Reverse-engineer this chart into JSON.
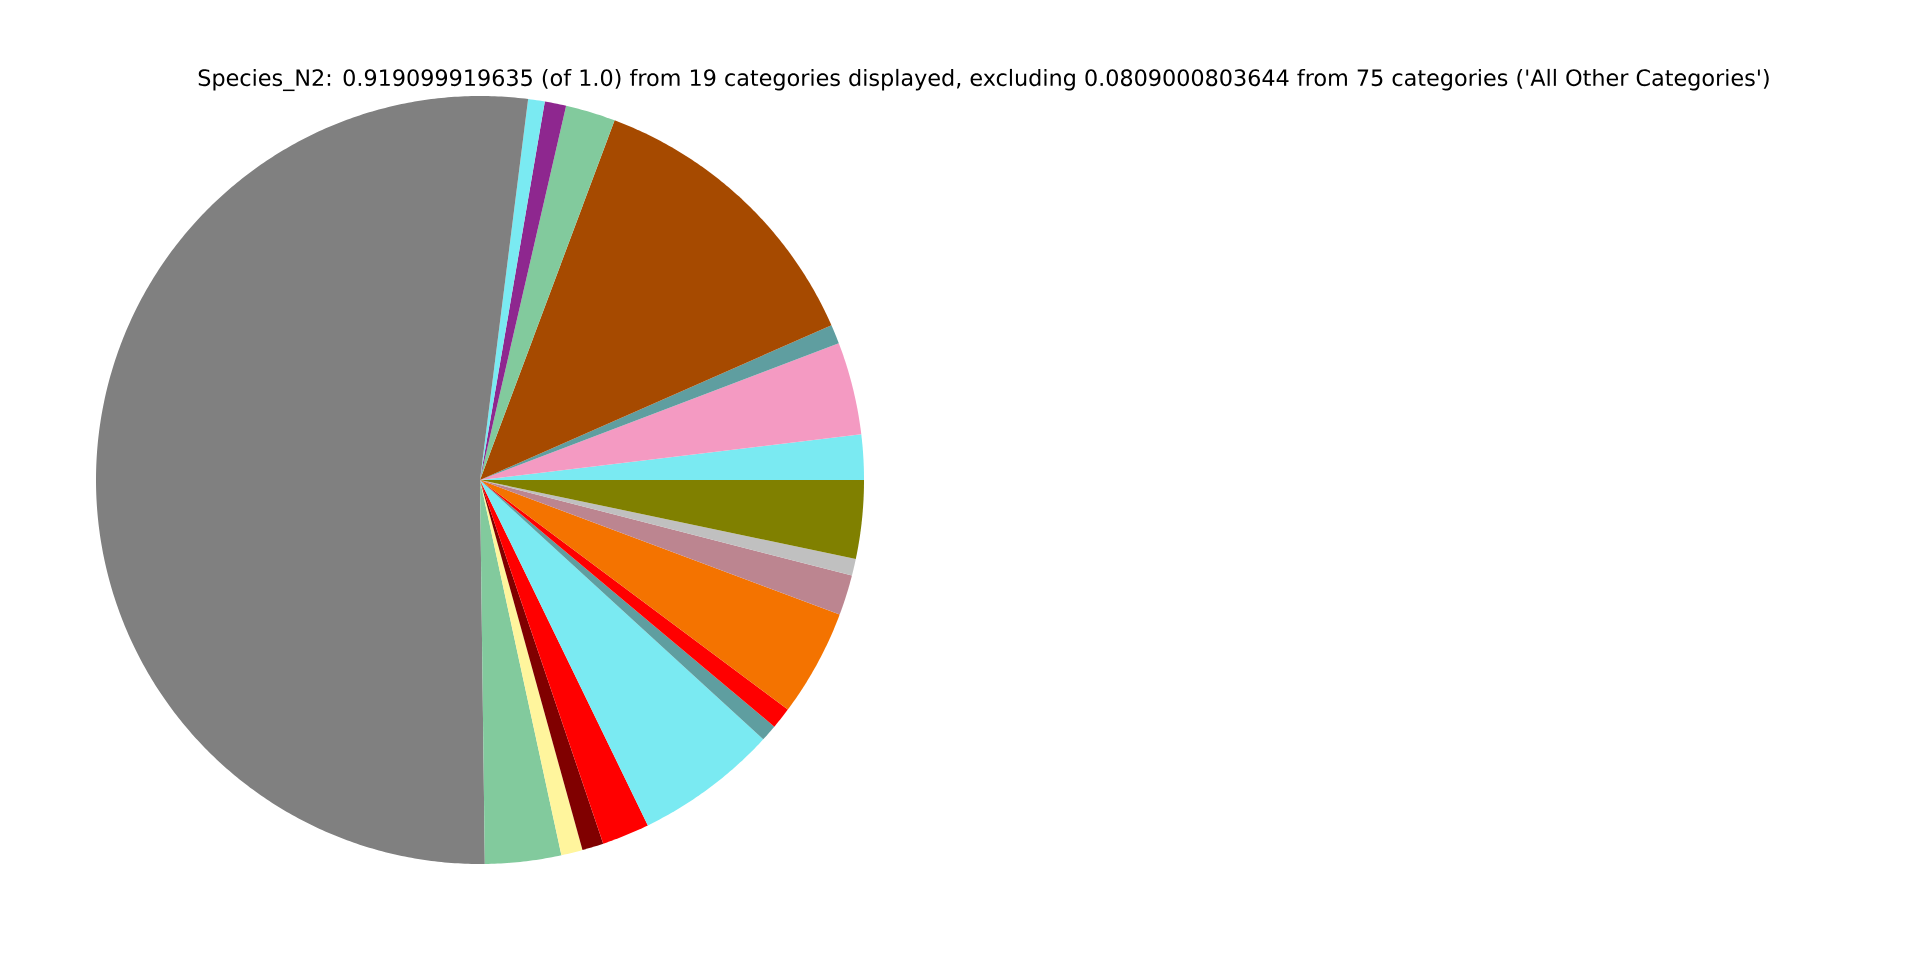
{
  "chart_data": {
    "type": "pie",
    "title": "Species_N2: 0.919099919635 (of 1.0) from 19 categories displayed, excluding 0.0809000803644 from 75 categories ('All Other Categories')",
    "categories": [
      null,
      null,
      null,
      null,
      null,
      null,
      null,
      null,
      null,
      null,
      null,
      null,
      null,
      null,
      null,
      null,
      null,
      null,
      null
    ],
    "values": [
      1.9,
      3.9,
      0.8,
      12.7,
      2.1,
      0.9,
      0.7,
      52.2,
      3.2,
      0.9,
      0.9,
      2.0,
      6.0,
      0.7,
      0.9,
      4.5,
      1.7,
      0.7,
      3.3
    ],
    "colors": [
      "#7aeaf2",
      "#f49ac2",
      "#5f9ea0",
      "#a64a00",
      "#82ca9d",
      "#8e278f",
      "#7aeaf2",
      "#808080",
      "#82ca9d",
      "#fff59d",
      "#800000",
      "#ff0000",
      "#7aeaf2",
      "#5f9ea0",
      "#ff0000",
      "#f47300",
      "#bc8590",
      "#c0c0c0",
      "#808000"
    ]
  }
}
